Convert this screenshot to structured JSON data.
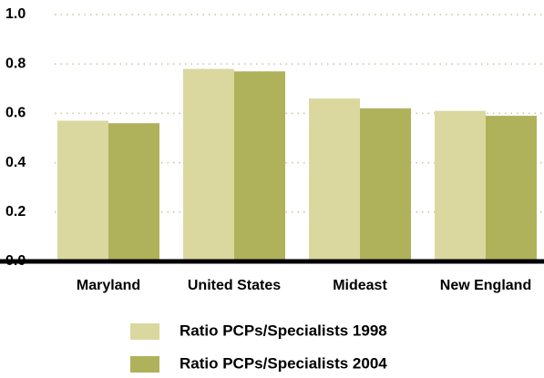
{
  "chart_data": {
    "type": "bar",
    "categories": [
      "Maryland",
      "United States",
      "Mideast",
      "New England"
    ],
    "series": [
      {
        "name": "Ratio PCPs/Specialists 1998",
        "color": "#dad89f",
        "values": [
          0.57,
          0.78,
          0.66,
          0.61
        ]
      },
      {
        "name": "Ratio PCPs/Specialists 2004",
        "color": "#afb25a",
        "values": [
          0.56,
          0.77,
          0.62,
          0.59
        ]
      }
    ],
    "ylim": [
      0,
      1
    ],
    "yticks": [
      {
        "value": 0,
        "label": "0.0"
      },
      0.2,
      0.4,
      0.6,
      0.8,
      {
        "value": 1,
        "label": "1.0"
      }
    ],
    "grid": true
  }
}
